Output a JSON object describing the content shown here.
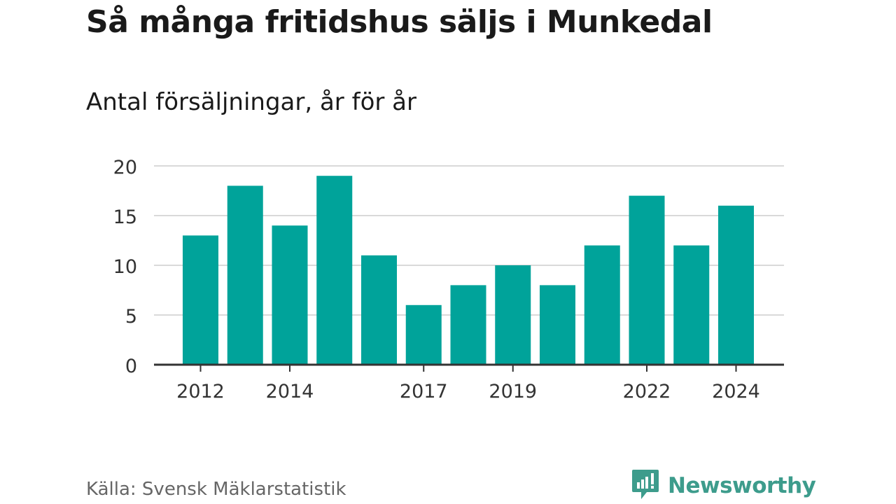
{
  "title": "Så många fritidshus säljs i Munkedal",
  "subtitle": "Antal försäljningar, år för år",
  "source": "Källa: Svensk Mäklarstatistik",
  "brand": {
    "name": "Newsworthy",
    "icon": "newsworthy-logo-icon"
  },
  "colors": {
    "bar": "#00a39a",
    "brand": "#3d9c8c",
    "grid": "#d9d9d9",
    "axis": "#333333"
  },
  "chart_data": {
    "type": "bar",
    "categories": [
      "2012",
      "2013",
      "2014",
      "2015",
      "2016",
      "2017",
      "2018",
      "2019",
      "2020",
      "2021",
      "2022",
      "2023",
      "2024"
    ],
    "values": [
      13,
      18,
      14,
      19,
      11,
      6,
      8,
      10,
      8,
      12,
      17,
      12,
      16
    ],
    "x_tick_labels": [
      "2012",
      "2014",
      "2017",
      "2019",
      "2022",
      "2024"
    ],
    "y_ticks": [
      0,
      5,
      10,
      15,
      20
    ],
    "ylim": [
      0,
      20
    ],
    "grid": true,
    "xlabel": "",
    "ylabel": ""
  }
}
